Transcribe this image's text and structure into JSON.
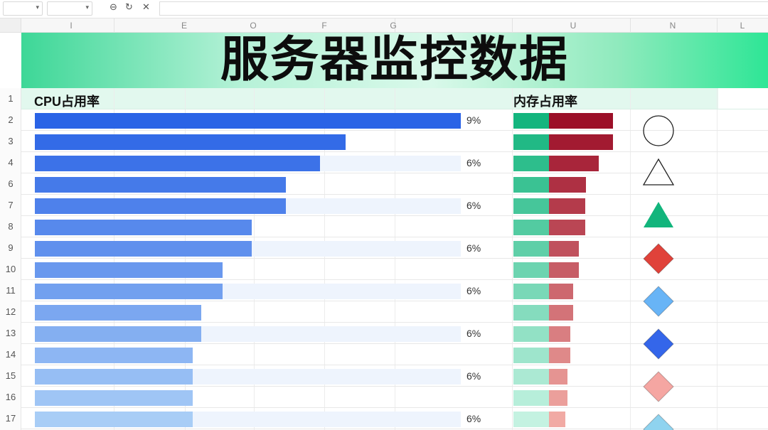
{
  "title": "服务器监控数据",
  "columns": [
    "I",
    "E",
    "O",
    "F",
    "G",
    "U",
    "N",
    "L"
  ],
  "header": {
    "row_number": "1",
    "cpu_label": "CPU占用率",
    "mem_label": "内存占用率"
  },
  "rows": [
    {
      "num": "2",
      "cpu": 1.0,
      "pct": "9%",
      "mem": 1.0,
      "shape": "circle-outline"
    },
    {
      "num": "3",
      "cpu": 0.73,
      "pct": "",
      "mem": 1.0,
      "shape": ""
    },
    {
      "num": "4",
      "cpu": 0.67,
      "pct": "6%",
      "mem": 0.86,
      "shape": "triangle-outline"
    },
    {
      "num": "6",
      "cpu": 0.59,
      "pct": "",
      "mem": 0.73,
      "shape": ""
    },
    {
      "num": "7",
      "cpu": 0.59,
      "pct": "6%",
      "mem": 0.72,
      "shape": "triangle-green"
    },
    {
      "num": "8",
      "cpu": 0.51,
      "pct": "",
      "mem": 0.72,
      "shape": ""
    },
    {
      "num": "9",
      "cpu": 0.51,
      "pct": "6%",
      "mem": 0.66,
      "shape": "diamond-red"
    },
    {
      "num": "10",
      "cpu": 0.44,
      "pct": "",
      "mem": 0.66,
      "shape": ""
    },
    {
      "num": "11",
      "cpu": 0.44,
      "pct": "6%",
      "mem": 0.6,
      "shape": "diamond-lightblue"
    },
    {
      "num": "12",
      "cpu": 0.39,
      "pct": "",
      "mem": 0.6,
      "shape": ""
    },
    {
      "num": "13",
      "cpu": 0.39,
      "pct": "6%",
      "mem": 0.57,
      "shape": "diamond-blue"
    },
    {
      "num": "14",
      "cpu": 0.37,
      "pct": "",
      "mem": 0.57,
      "shape": ""
    },
    {
      "num": "15",
      "cpu": 0.37,
      "pct": "6%",
      "mem": 0.54,
      "shape": "diamond-pink"
    },
    {
      "num": "16",
      "cpu": 0.37,
      "pct": "",
      "mem": 0.54,
      "shape": ""
    },
    {
      "num": "17",
      "cpu": 0.37,
      "pct": "6%",
      "mem": 0.52,
      "shape": "diamond-cyan"
    }
  ],
  "colors": {
    "cpu_dark": "#2a63e6",
    "cpu_light": "#a8cdf6",
    "track": "#eef4fd",
    "mem_green": "#14b57e",
    "mem_red": "#9c0f28",
    "shape_green": "#12b57c",
    "shape_red": "#e0423a",
    "shape_lightblue": "#68b4f6",
    "shape_blue": "#3466ea",
    "shape_pink": "#f5a6a2",
    "shape_cyan": "#8fd3ef"
  }
}
